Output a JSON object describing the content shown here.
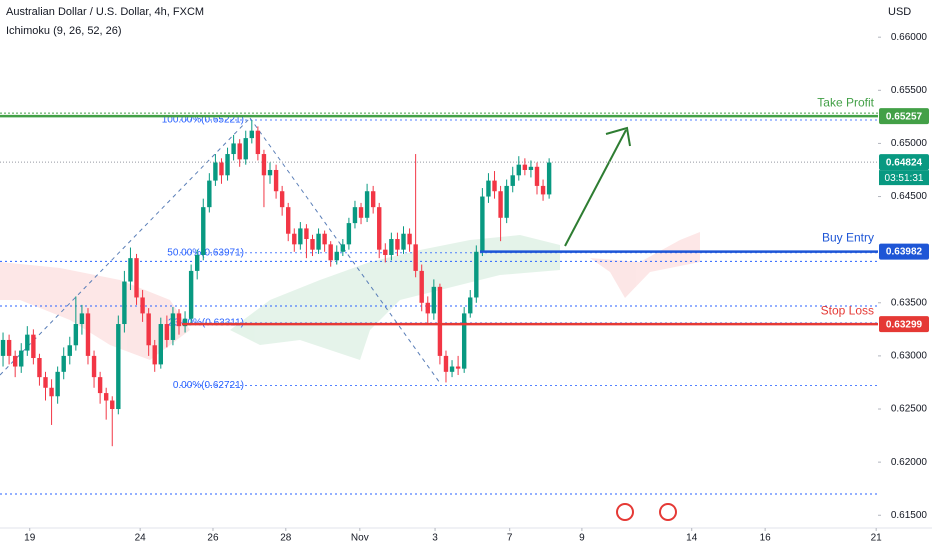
{
  "chart_data": {
    "type": "candlestick",
    "title": "Australian Dollar / U.S. Dollar, 4h, FXCM",
    "subtitle": "Ichimoku (9, 26, 52, 26)",
    "y_axis_label": "USD",
    "up_color": "#089981",
    "down_color": "#f23645",
    "open": [
      0.63,
      0.6315,
      0.63,
      0.629,
      0.6305,
      0.632,
      0.6298,
      0.628,
      0.627,
      0.6262,
      0.6285,
      0.63,
      0.631,
      0.633,
      0.634,
      0.63,
      0.628,
      0.6265,
      0.6258,
      0.625,
      0.633,
      0.637,
      0.6392,
      0.6355,
      0.634,
      0.631,
      0.6292,
      0.633,
      0.6315,
      0.634,
      0.6328,
      0.6335,
      0.638,
      0.6395,
      0.644,
      0.6465,
      0.6482,
      0.647,
      0.649,
      0.65,
      0.6485,
      0.6505,
      0.6512,
      0.649,
      0.647,
      0.6475,
      0.6455,
      0.644,
      0.6415,
      0.6405,
      0.642,
      0.641,
      0.64,
      0.6415,
      0.6405,
      0.639,
      0.6398,
      0.6405,
      0.6425,
      0.644,
      0.643,
      0.6455,
      0.644,
      0.64,
      0.6395,
      0.641,
      0.64,
      0.6415,
      0.6405,
      0.638,
      0.635,
      0.634,
      0.6365,
      0.63,
      0.6285,
      0.629,
      0.6288,
      0.634,
      0.6355,
      0.6398,
      0.645,
      0.6465,
      0.6455,
      0.643,
      0.646,
      0.647,
      0.648,
      0.6475,
      0.6478,
      0.646,
      0.6452
    ],
    "high": [
      0.6322,
      0.632,
      0.6305,
      0.6312,
      0.6328,
      0.6325,
      0.6302,
      0.6285,
      0.6278,
      0.629,
      0.6308,
      0.6318,
      0.6356,
      0.6348,
      0.6345,
      0.6305,
      0.6285,
      0.627,
      0.6262,
      0.6338,
      0.638,
      0.6402,
      0.6396,
      0.6362,
      0.6345,
      0.6315,
      0.6336,
      0.6338,
      0.6346,
      0.6344,
      0.6342,
      0.6386,
      0.64,
      0.6448,
      0.6472,
      0.649,
      0.6486,
      0.6496,
      0.6508,
      0.6504,
      0.6512,
      0.6522,
      0.6516,
      0.6494,
      0.6482,
      0.648,
      0.646,
      0.6444,
      0.642,
      0.6426,
      0.6424,
      0.6414,
      0.642,
      0.6418,
      0.6408,
      0.6404,
      0.641,
      0.643,
      0.6446,
      0.6444,
      0.6462,
      0.646,
      0.6444,
      0.6406,
      0.6416,
      0.6416,
      0.6422,
      0.642,
      0.649,
      0.6386,
      0.6356,
      0.6372,
      0.6368,
      0.6305,
      0.6296,
      0.63,
      0.6346,
      0.6362,
      0.6404,
      0.6458,
      0.6472,
      0.6474,
      0.646,
      0.6466,
      0.6478,
      0.6488,
      0.6486,
      0.6484,
      0.6482,
      0.6466,
      0.6486
    ],
    "low": [
      0.629,
      0.6292,
      0.628,
      0.6284,
      0.63,
      0.6292,
      0.6272,
      0.6258,
      0.6235,
      0.6255,
      0.6278,
      0.6292,
      0.6305,
      0.632,
      0.6292,
      0.627,
      0.6255,
      0.624,
      0.6215,
      0.6245,
      0.6322,
      0.6362,
      0.6348,
      0.6332,
      0.63,
      0.6285,
      0.6288,
      0.6308,
      0.631,
      0.632,
      0.6322,
      0.633,
      0.6372,
      0.639,
      0.6435,
      0.646,
      0.6462,
      0.6465,
      0.6484,
      0.6478,
      0.648,
      0.65,
      0.6484,
      0.644,
      0.6462,
      0.6448,
      0.6432,
      0.6408,
      0.6398,
      0.64,
      0.6392,
      0.6394,
      0.6396,
      0.6398,
      0.6384,
      0.6386,
      0.6394,
      0.64,
      0.642,
      0.6424,
      0.6426,
      0.6434,
      0.6392,
      0.6388,
      0.639,
      0.6394,
      0.6396,
      0.6398,
      0.6374,
      0.6342,
      0.633,
      0.6334,
      0.6292,
      0.6275,
      0.628,
      0.6282,
      0.6284,
      0.6336,
      0.635,
      0.6394,
      0.6444,
      0.6448,
      0.6408,
      0.6425,
      0.6454,
      0.6465,
      0.647,
      0.6468,
      0.6452,
      0.6446,
      0.6448
    ],
    "close": [
      0.6315,
      0.63,
      0.629,
      0.6305,
      0.632,
      0.6298,
      0.628,
      0.627,
      0.6262,
      0.6285,
      0.63,
      0.631,
      0.633,
      0.634,
      0.63,
      0.628,
      0.6265,
      0.6258,
      0.625,
      0.633,
      0.637,
      0.6392,
      0.6355,
      0.634,
      0.631,
      0.6292,
      0.633,
      0.6315,
      0.634,
      0.6328,
      0.6335,
      0.638,
      0.6395,
      0.644,
      0.6465,
      0.6482,
      0.647,
      0.649,
      0.65,
      0.6485,
      0.6505,
      0.6512,
      0.649,
      0.647,
      0.6475,
      0.6455,
      0.644,
      0.6415,
      0.6405,
      0.642,
      0.641,
      0.64,
      0.6415,
      0.6405,
      0.639,
      0.6398,
      0.6405,
      0.6425,
      0.644,
      0.643,
      0.6455,
      0.644,
      0.64,
      0.6395,
      0.641,
      0.64,
      0.6415,
      0.6405,
      0.638,
      0.635,
      0.634,
      0.6365,
      0.63,
      0.6285,
      0.629,
      0.6288,
      0.634,
      0.6355,
      0.6398,
      0.645,
      0.6465,
      0.6455,
      0.643,
      0.646,
      0.647,
      0.648,
      0.6475,
      0.6478,
      0.646,
      0.6452,
      0.6482
    ],
    "xlim": [
      -0.5,
      144.2
    ],
    "xticks": [
      {
        "value": 4.4,
        "label": "19"
      },
      {
        "value": 22.6,
        "label": "24"
      },
      {
        "value": 34.6,
        "label": "26"
      },
      {
        "value": 46.6,
        "label": "28"
      },
      {
        "value": 58.8,
        "label": "Nov"
      },
      {
        "value": 71.2,
        "label": "3"
      },
      {
        "value": 83.5,
        "label": "7"
      },
      {
        "value": 95.4,
        "label": "9"
      },
      {
        "value": 113.5,
        "label": "14"
      },
      {
        "value": 125.6,
        "label": "16"
      },
      {
        "value": 143.9,
        "label": "21"
      }
    ],
    "ylim": [
      0.6138,
      0.6635
    ],
    "yticks": [
      {
        "value": 0.66,
        "label": "0.66000"
      },
      {
        "value": 0.655,
        "label": "0.65500"
      },
      {
        "value": 0.65,
        "label": "0.65000"
      },
      {
        "value": 0.645,
        "label": "0.64500"
      },
      {
        "value": 0.635,
        "label": "0.63500"
      },
      {
        "value": 0.63,
        "label": "0.63000"
      },
      {
        "value": 0.625,
        "label": "0.62500"
      },
      {
        "value": 0.62,
        "label": "0.62000"
      },
      {
        "value": 0.615,
        "label": "0.61500"
      }
    ],
    "lines": [
      {
        "name": "Take Profit",
        "value": 0.65257,
        "value_label": "0.65257",
        "color": "#43a047"
      },
      {
        "name": "Buy Entry",
        "value": 0.63982,
        "value_label": "0.63982",
        "color": "#1e56d6"
      },
      {
        "name": "Stop Loss",
        "value": 0.63299,
        "value_label": "0.63299",
        "color": "#e53935"
      }
    ],
    "levels": [
      0.6389,
      0.6347,
      0.617
    ],
    "fib": [
      {
        "label": "100.00%(0.65221)",
        "value": 0.65221
      },
      {
        "label": "50.00%(0.63971)",
        "value": 0.63971
      },
      {
        "label": "23.60%(0.63311)",
        "value": 0.63311
      },
      {
        "label": "0.00%(0.62721)",
        "value": 0.62721
      }
    ],
    "last_price": 0.64824,
    "last_price_label": "0.64824",
    "countdown": "03:51:31"
  }
}
